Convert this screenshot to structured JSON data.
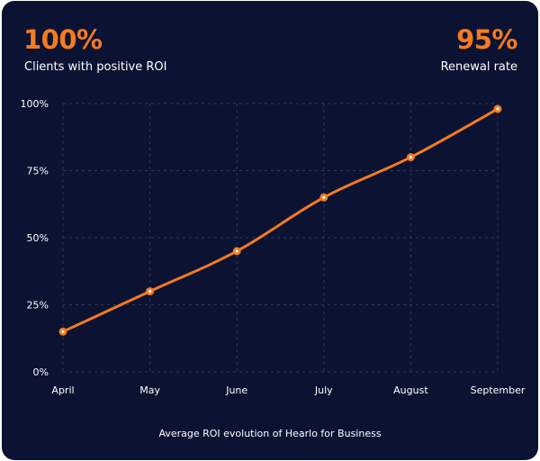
{
  "stats": {
    "left": {
      "value": "100%",
      "label": "Clients with positive ROI"
    },
    "right": {
      "value": "95%",
      "label": "Renewal rate"
    }
  },
  "colors": {
    "background": "#0c1332",
    "accent": "#f47a22",
    "grid": "#2e3a5c",
    "text": "#ffffff"
  },
  "chart_data": {
    "type": "line",
    "title": "Average ROI evolution of Hearlo for Business",
    "categories": [
      "April",
      "May",
      "June",
      "July",
      "August",
      "September"
    ],
    "series": [
      {
        "name": "Average ROI",
        "values": [
          15,
          30,
          45,
          65,
          80,
          98
        ]
      }
    ],
    "yticks": [
      "0%",
      "25%",
      "50%",
      "75%",
      "100%"
    ],
    "ytick_values": [
      0,
      25,
      50,
      75,
      100
    ],
    "ylim": [
      0,
      100
    ],
    "grid": true,
    "xlabel": "",
    "ylabel": ""
  }
}
